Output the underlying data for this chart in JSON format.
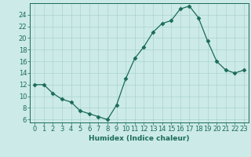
{
  "x": [
    0,
    1,
    2,
    3,
    4,
    5,
    6,
    7,
    8,
    9,
    10,
    11,
    12,
    13,
    14,
    15,
    16,
    17,
    18,
    19,
    20,
    21,
    22,
    23
  ],
  "y": [
    12,
    12,
    10.5,
    9.5,
    9,
    7.5,
    7,
    6.5,
    6,
    8.5,
    13,
    16.5,
    18.5,
    21,
    22.5,
    23,
    25,
    25.5,
    23.5,
    19.5,
    16,
    14.5,
    14,
    14.5
  ],
  "line_color": "#1a6b5a",
  "marker": "D",
  "marker_size": 2.5,
  "bg_color": "#cceae8",
  "grid_color": "#aad4d0",
  "xlabel": "Humidex (Indice chaleur)",
  "ylabel": "",
  "xlim": [
    -0.5,
    23.5
  ],
  "ylim": [
    5.5,
    26
  ],
  "yticks": [
    6,
    8,
    10,
    12,
    14,
    16,
    18,
    20,
    22,
    24
  ],
  "xticks": [
    0,
    1,
    2,
    3,
    4,
    5,
    6,
    7,
    8,
    9,
    10,
    11,
    12,
    13,
    14,
    15,
    16,
    17,
    18,
    19,
    20,
    21,
    22,
    23
  ],
  "tick_color": "#1a6b5a",
  "label_fontsize": 6.5,
  "tick_fontsize": 6
}
